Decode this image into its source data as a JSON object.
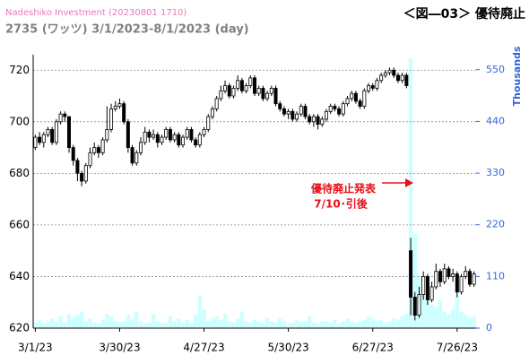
{
  "chart_data": {
    "type": "candlestick",
    "source": "Nadeshiko Investment (20230801 1710)",
    "title": "2735 (ワッツ) 3/1/2023-8/1/2023 (day)",
    "figure_label": "＜図―03＞ 優待廃止",
    "annotation": [
      "優待廃止発表",
      "7/10･引後"
    ],
    "y2label": "Thousands",
    "xlim": [
      -0.5,
      104.5
    ],
    "xticks": [
      {
        "value": 0,
        "label": "3/1/23"
      },
      {
        "value": 20,
        "label": "3/30/23"
      },
      {
        "value": 40,
        "label": "4/27/23"
      },
      {
        "value": 60,
        "label": "5/30/23"
      },
      {
        "value": 80,
        "label": "6/27/23"
      },
      {
        "value": 100,
        "label": "7/26/23"
      }
    ],
    "ylim": [
      620,
      726
    ],
    "yticks": [
      620,
      640,
      660,
      680,
      700,
      720
    ],
    "y2lim": [
      0,
      582
    ],
    "y2ticks": [
      0,
      110,
      220,
      330,
      440,
      550
    ],
    "grid": true,
    "up_color": "#ffffff",
    "down_color": "#000000",
    "volume_color": "#ccffff",
    "open": [
      690,
      694,
      692,
      695,
      697,
      692,
      700,
      703,
      702,
      690,
      685,
      680,
      677,
      683,
      688,
      690,
      688,
      693,
      697,
      705,
      706,
      707,
      700,
      690,
      684,
      688,
      692,
      696,
      694,
      695,
      692,
      694,
      697,
      693,
      695,
      691,
      694,
      697,
      693,
      691,
      695,
      697,
      702,
      705,
      709,
      712,
      714,
      710,
      713,
      716,
      712,
      714,
      717,
      711,
      713,
      709,
      711,
      713,
      707,
      705,
      703,
      704,
      701,
      703,
      706,
      702,
      700,
      702,
      699,
      701,
      704,
      706,
      705,
      703,
      707,
      709,
      711,
      708,
      706,
      712,
      714,
      713,
      716,
      718,
      719,
      720,
      718,
      716,
      718,
      650,
      632,
      625,
      633,
      640,
      631,
      636,
      642,
      638,
      643,
      640,
      641,
      634,
      640,
      642,
      637
    ],
    "high": [
      695,
      696,
      696,
      698,
      698,
      701,
      704,
      704,
      702,
      691,
      686,
      681,
      684,
      690,
      692,
      691,
      694,
      706,
      707,
      708,
      709,
      708,
      701,
      691,
      689,
      694,
      698,
      697,
      697,
      696,
      695,
      698,
      698,
      696,
      696,
      695,
      698,
      698,
      694,
      696,
      698,
      703,
      706,
      710,
      714,
      716,
      715,
      714,
      718,
      717,
      715,
      718,
      718,
      714,
      714,
      712,
      714,
      714,
      708,
      706,
      705,
      705,
      704,
      707,
      707,
      703,
      703,
      703,
      702,
      705,
      707,
      707,
      706,
      708,
      710,
      712,
      712,
      709,
      713,
      715,
      715,
      717,
      719,
      720,
      721,
      721,
      719,
      719,
      719,
      655,
      634,
      636,
      642,
      641,
      638,
      645,
      643,
      645,
      644,
      643,
      642,
      641,
      644,
      643,
      642
    ],
    "low": [
      689,
      691,
      690,
      694,
      691,
      691,
      699,
      700,
      688,
      683,
      677,
      675,
      676,
      682,
      687,
      686,
      687,
      692,
      696,
      704,
      705,
      699,
      688,
      683,
      683,
      687,
      691,
      692,
      693,
      690,
      691,
      693,
      692,
      692,
      690,
      690,
      693,
      692,
      690,
      690,
      694,
      696,
      701,
      704,
      708,
      711,
      709,
      709,
      712,
      711,
      711,
      713,
      710,
      710,
      708,
      708,
      710,
      706,
      704,
      702,
      701,
      700,
      700,
      702,
      701,
      699,
      698,
      697,
      698,
      700,
      703,
      704,
      702,
      702,
      706,
      708,
      707,
      705,
      705,
      711,
      712,
      712,
      715,
      717,
      718,
      717,
      715,
      715,
      713,
      625,
      623,
      624,
      631,
      629,
      630,
      635,
      636,
      637,
      639,
      638,
      632,
      633,
      639,
      636,
      636
    ],
    "close": [
      694,
      692,
      695,
      697,
      692,
      700,
      703,
      702,
      690,
      685,
      680,
      677,
      683,
      688,
      690,
      688,
      693,
      697,
      705,
      706,
      707,
      700,
      690,
      684,
      688,
      692,
      696,
      694,
      695,
      692,
      694,
      697,
      693,
      695,
      691,
      694,
      697,
      693,
      691,
      695,
      697,
      702,
      705,
      709,
      712,
      714,
      710,
      713,
      716,
      712,
      714,
      717,
      711,
      713,
      709,
      711,
      713,
      707,
      705,
      703,
      704,
      701,
      703,
      706,
      702,
      700,
      702,
      699,
      701,
      704,
      706,
      705,
      703,
      707,
      709,
      711,
      708,
      706,
      712,
      714,
      713,
      716,
      718,
      719,
      720,
      718,
      716,
      718,
      714,
      632,
      625,
      633,
      640,
      631,
      636,
      642,
      638,
      643,
      640,
      641,
      634,
      640,
      642,
      637,
      641
    ],
    "volume": [
      12,
      18,
      10,
      15,
      20,
      14,
      25,
      12,
      30,
      22,
      28,
      35,
      15,
      20,
      12,
      10,
      18,
      30,
      25,
      15,
      12,
      14,
      28,
      20,
      35,
      15,
      10,
      12,
      30,
      14,
      12,
      10,
      25,
      15,
      20,
      12,
      18,
      10,
      28,
      70,
      40,
      15,
      20,
      25,
      18,
      30,
      15,
      12,
      20,
      35,
      15,
      12,
      18,
      14,
      10,
      22,
      15,
      12,
      20,
      15,
      10,
      12,
      18,
      14,
      15,
      25,
      12,
      10,
      15,
      14,
      12,
      18,
      10,
      15,
      20,
      14,
      12,
      15,
      18,
      25,
      20,
      15,
      18,
      12,
      15,
      20,
      18,
      25,
      30,
      575,
      200,
      110,
      80,
      60,
      50,
      45,
      60,
      35,
      30,
      40,
      70,
      35,
      28,
      22,
      25
    ]
  }
}
